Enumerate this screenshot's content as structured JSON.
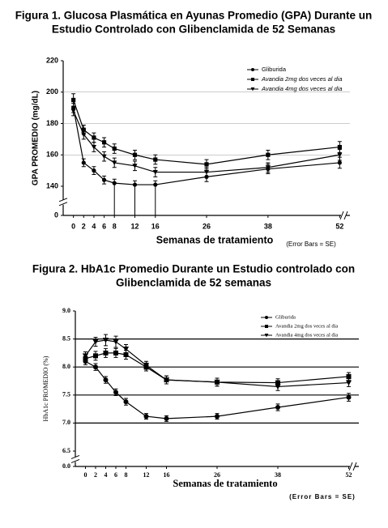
{
  "chart_data": [
    {
      "type": "line",
      "title": [
        "Figura 1.  Glucosa Plasmática en Ayunas Promedio (GPA) Durante un",
        "Estudio Controlado con Glibenclamida de 52 Semanas"
      ],
      "y_label": "GPA PROMEDIO (mg/dL)",
      "x_label": "Semanas de tratamiento",
      "note": "(Error Bars = SE)",
      "x": [
        0,
        2,
        4,
        6,
        8,
        12,
        16,
        26,
        38,
        52
      ],
      "xlim": [
        -2,
        54
      ],
      "xticks": [
        0,
        2,
        4,
        6,
        8,
        12,
        16,
        26,
        38,
        52
      ],
      "ylim": [
        0,
        220
      ],
      "yticks": [
        0,
        140,
        160,
        180,
        200,
        220
      ],
      "y_break": true,
      "grid": true,
      "legend": "top-right",
      "series": [
        {
          "name": "Gliburida",
          "color": "#000000",
          "marker": "circle",
          "values": [
            190,
            155,
            150,
            144,
            142,
            141,
            141,
            146,
            151,
            155
          ],
          "errors": [
            3,
            2.5,
            2.5,
            2.5,
            2.5,
            2.5,
            2.5,
            3,
            3,
            3.5
          ]
        },
        {
          "name": "Avandia 2mg dos veces al dia",
          "color": "#000000",
          "marker": "square",
          "values": [
            195,
            176,
            171,
            168,
            164,
            160,
            157,
            154,
            160,
            165
          ],
          "errors": [
            4,
            3,
            3,
            3,
            3,
            3,
            3,
            3,
            3,
            3.5
          ]
        },
        {
          "name": "Avandia 4mg dos veces al dia",
          "color": "#000000",
          "marker": "triangle",
          "values": [
            188,
            173,
            165,
            159,
            155,
            153,
            149,
            149,
            152,
            160
          ],
          "errors": [
            3,
            3,
            3,
            3,
            3,
            3,
            3,
            3,
            3,
            3.5
          ]
        }
      ]
    },
    {
      "type": "line",
      "title": [
        "Figura 2.  HbA1c Promedio Durante un Estudio controlado con",
        "Glibenclamida de 52 semanas"
      ],
      "y_label": "HbA1c PROMEDIO (%)",
      "x_label": "Semanas de tratamiento",
      "note": "(Error Bars = SE)",
      "x": [
        0,
        2,
        4,
        6,
        8,
        12,
        16,
        26,
        38,
        52
      ],
      "xlim": [
        -2,
        54
      ],
      "xticks": [
        0,
        2,
        4,
        6,
        8,
        12,
        16,
        26,
        38,
        52
      ],
      "ylim": [
        0,
        9
      ],
      "yticks": [
        {
          "value": 0,
          "label": "0.0"
        },
        6.5,
        {
          "value": 7,
          "label": "7.0"
        },
        7.5,
        {
          "value": 8,
          "label": "8.0"
        },
        8.5,
        {
          "value": 9,
          "label": "9.0"
        }
      ],
      "y_break": true,
      "grid": true,
      "legend": "top-right",
      "series": [
        {
          "name": "Gliburida",
          "color": "#000000",
          "marker": "circle",
          "values": [
            8.1,
            8.0,
            7.77,
            7.55,
            7.38,
            7.12,
            7.08,
            7.12,
            7.28,
            7.46
          ],
          "errors": [
            0.06,
            0.06,
            0.06,
            0.06,
            0.06,
            0.05,
            0.05,
            0.05,
            0.06,
            0.07
          ]
        },
        {
          "name": "Avandia 2mg dos veces al dia",
          "color": "#000000",
          "marker": "square",
          "values": [
            8.15,
            8.2,
            8.25,
            8.25,
            8.22,
            8.0,
            7.77,
            7.73,
            7.72,
            7.83
          ],
          "errors": [
            0.07,
            0.08,
            0.08,
            0.08,
            0.08,
            0.07,
            0.07,
            0.07,
            0.07,
            0.07
          ]
        },
        {
          "name": "Avandia 4mg dos veces al dia",
          "color": "#000000",
          "marker": "triangle",
          "values": [
            8.2,
            8.45,
            8.48,
            8.45,
            8.32,
            8.03,
            7.77,
            7.73,
            7.65,
            7.72
          ],
          "errors": [
            0.07,
            0.08,
            0.1,
            0.1,
            0.08,
            0.07,
            0.07,
            0.07,
            0.07,
            0.07
          ]
        }
      ]
    }
  ]
}
